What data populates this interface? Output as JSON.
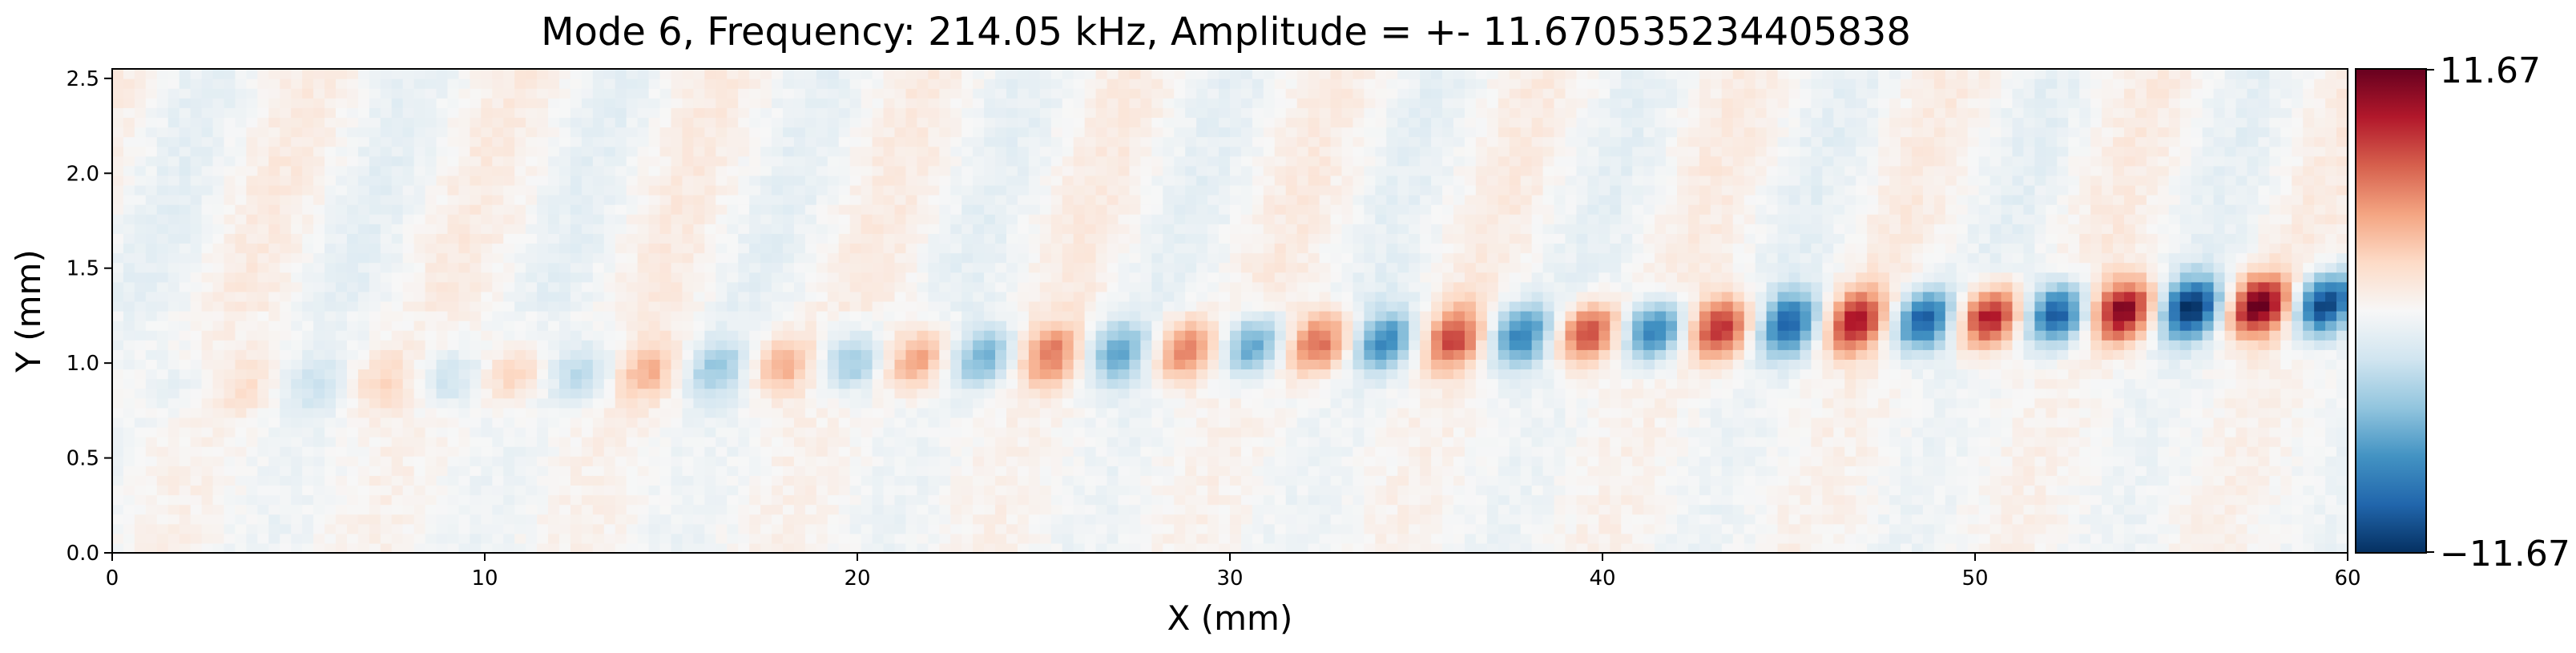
{
  "chart_data": {
    "type": "heatmap",
    "title": "Mode 6, Frequency: 214.05 kHz, Amplitude = +- 11.670535234405838",
    "xlabel": "X (mm)",
    "ylabel": "Y (mm)",
    "xlim": [
      0,
      60
    ],
    "ylim": [
      0,
      2.55
    ],
    "x_ticks": [
      0,
      10,
      20,
      30,
      40,
      50,
      60
    ],
    "x_tick_labels": [
      "0",
      "10",
      "20",
      "30",
      "40",
      "50",
      "60"
    ],
    "y_ticks": [
      0.0,
      0.5,
      1.0,
      1.5,
      2.0,
      2.5
    ],
    "y_tick_labels": [
      "0.0",
      "0.5",
      "1.0",
      "1.5",
      "2.0",
      "2.5"
    ],
    "colorbar": {
      "min": -11.67,
      "max": 11.67,
      "min_label": "−11.67",
      "max_label": "11.67",
      "colormap": [
        "#053061",
        "#2166ac",
        "#4393c3",
        "#92c5de",
        "#d1e5f0",
        "#f7f7f7",
        "#fddbc7",
        "#f4a582",
        "#d6604d",
        "#b2182b",
        "#67001f"
      ]
    },
    "wave_band": {
      "y_start_mm": 0.85,
      "y_end_mm": 1.32,
      "wavelength_mm": 3.6,
      "amplitude_start": 0.6,
      "amplitude_end": 11.67
    },
    "grid": false,
    "legend": "none"
  }
}
